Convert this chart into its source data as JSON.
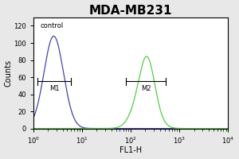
{
  "title": "MDA-MB231",
  "xlabel": "FL1-H",
  "ylabel": "Counts",
  "xlim_log": [
    1.0,
    10000.0
  ],
  "ylim": [
    0,
    130
  ],
  "yticks": [
    0,
    20,
    40,
    60,
    80,
    100,
    120
  ],
  "control_label": "control",
  "m1_label": "M1",
  "m2_label": "M2",
  "blue_color": "#4444aa",
  "green_color": "#55cc44",
  "background_color": "#ffffff",
  "outer_background": "#e8e8e8",
  "title_fontsize": 11,
  "axis_fontsize": 7,
  "tick_fontsize": 6,
  "blue_peak_x_log": 0.42,
  "blue_peak_y": 108,
  "blue_sigma": 0.2,
  "green_peak1_x_log": 2.28,
  "green_peak1_y": 80,
  "green_peak2_x_log": 2.35,
  "green_peak2_y": 76,
  "green_sigma": 0.21,
  "m1_x_start_log": 0.08,
  "m1_x_end_log": 0.78,
  "m1_y": 55,
  "m2_x_start_log": 1.9,
  "m2_x_end_log": 2.72,
  "m2_y": 55
}
